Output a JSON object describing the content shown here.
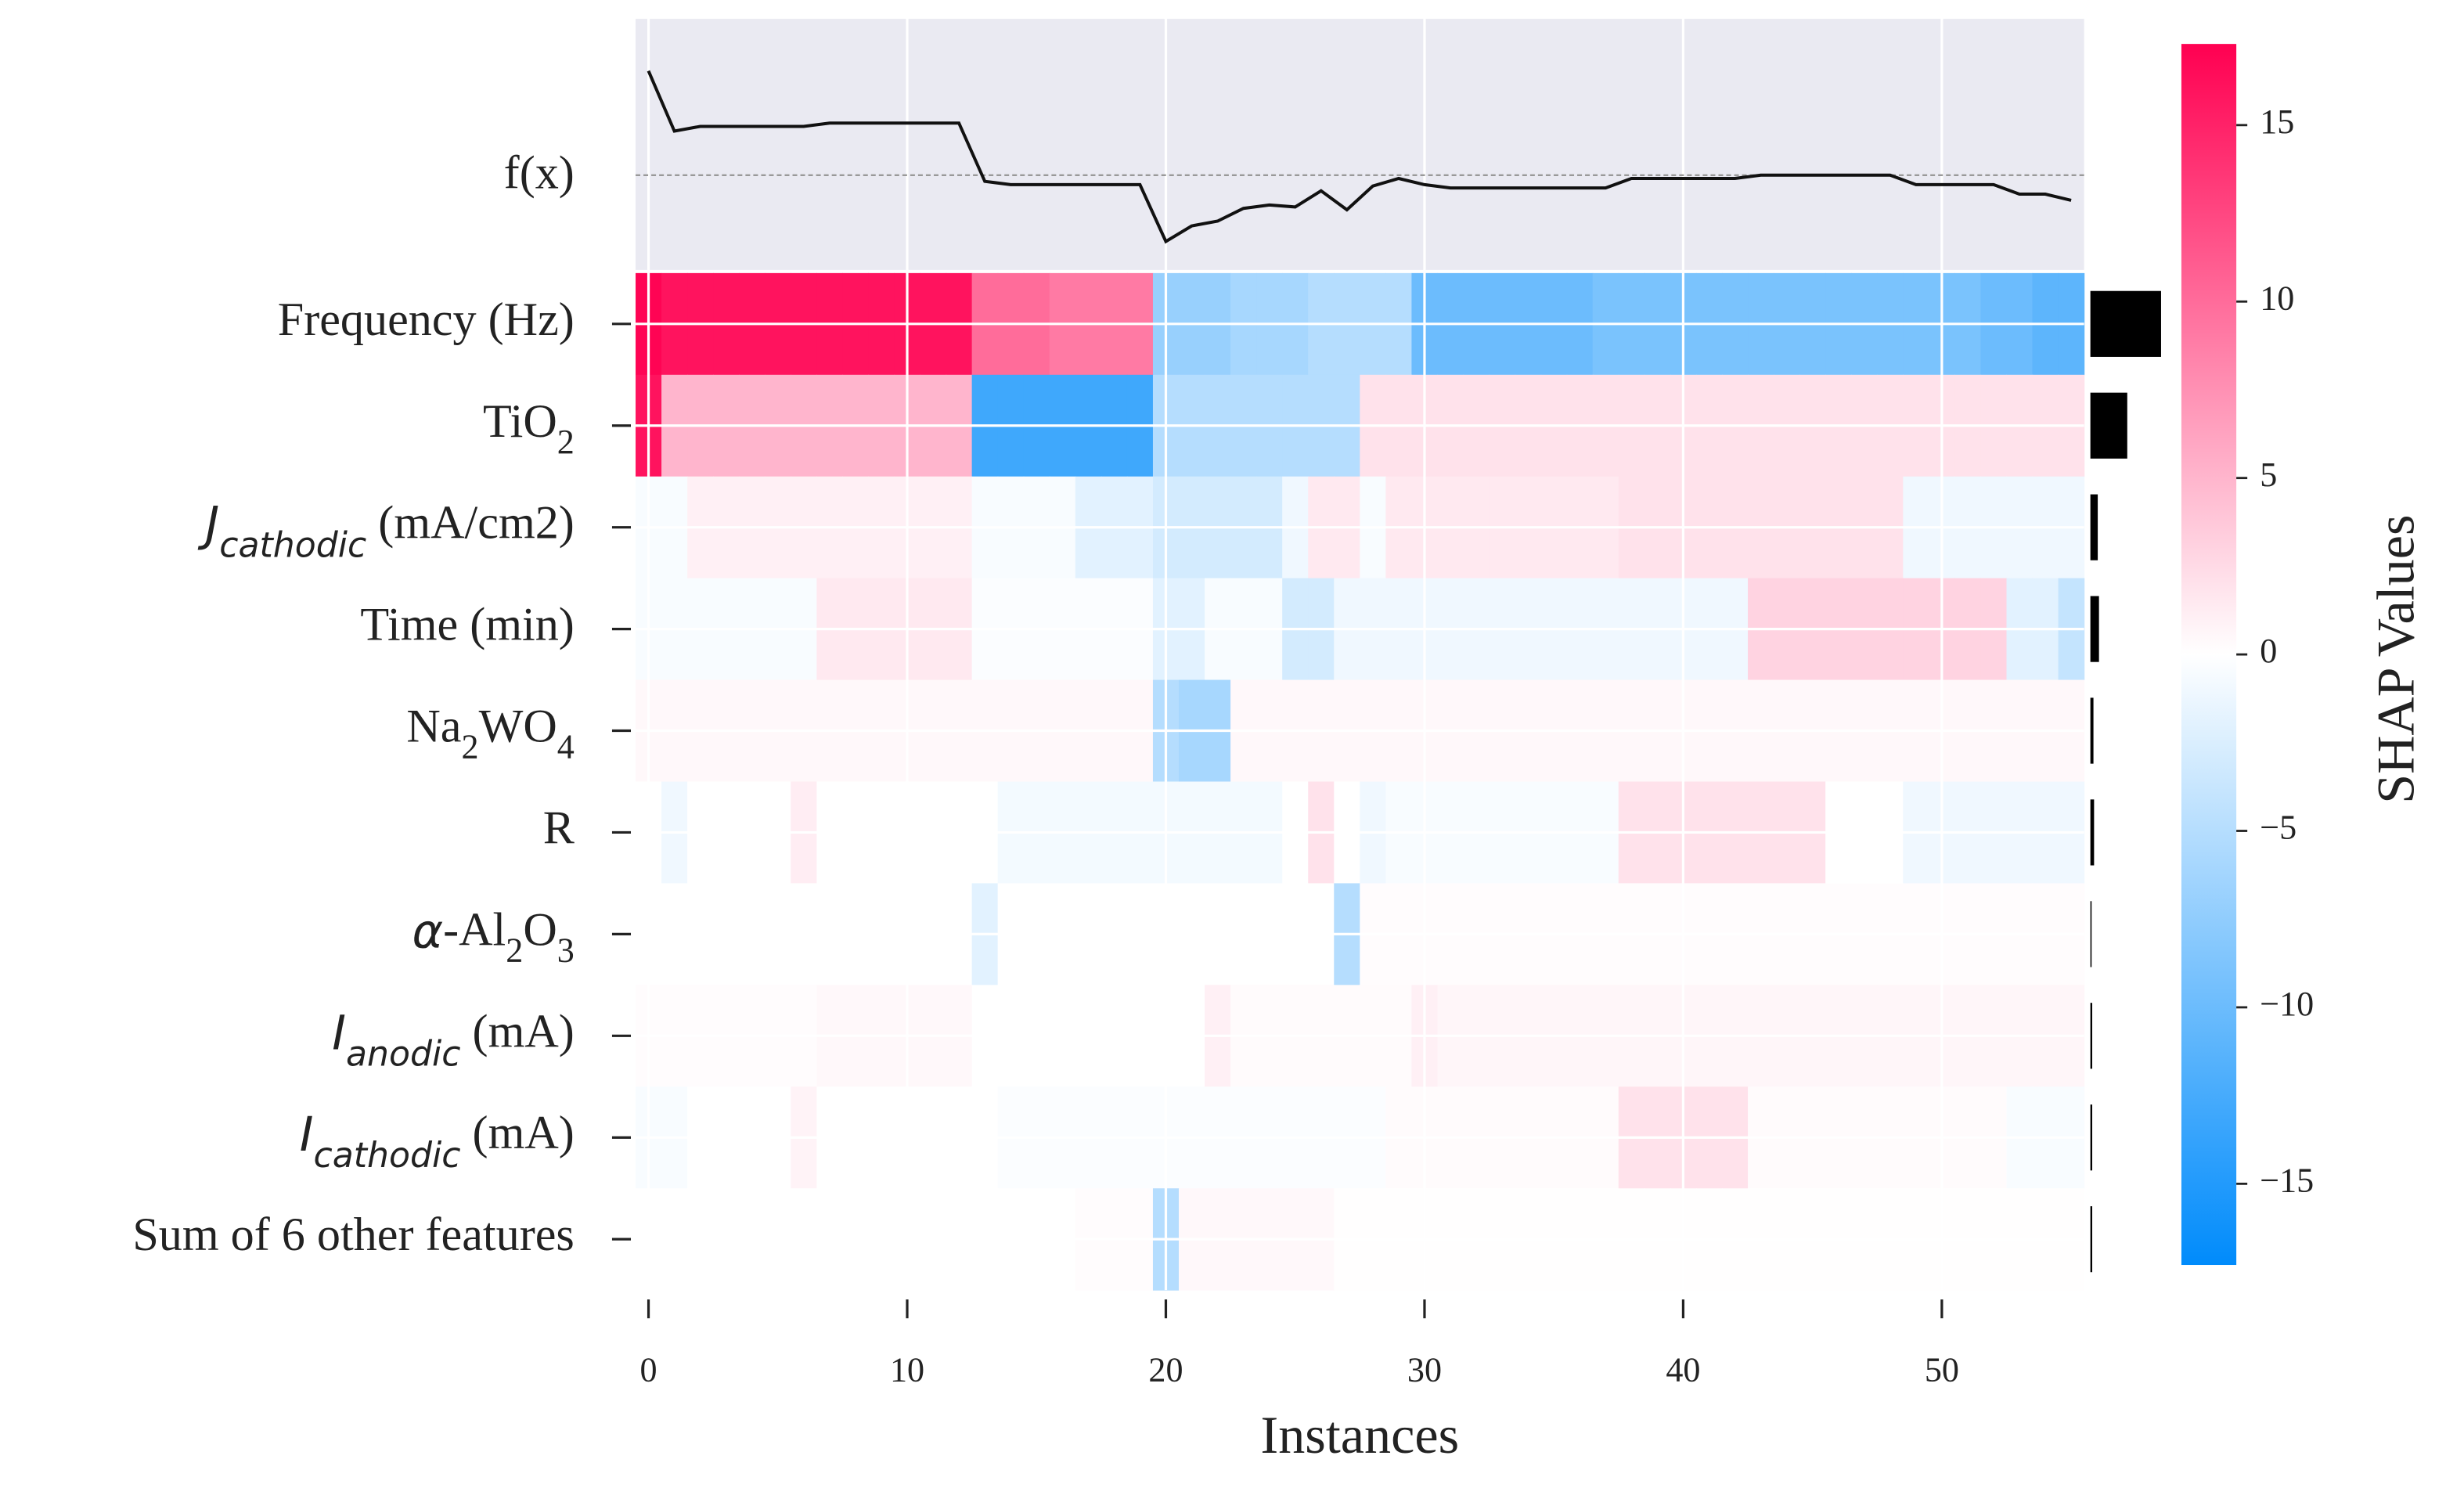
{
  "chart_data": {
    "type": "heatmap",
    "xlabel": "Instances",
    "xlim": [
      -0.5,
      55.5
    ],
    "xticks": [
      0,
      10,
      20,
      30,
      40,
      50
    ],
    "clim": [
      -17.3,
      17.3
    ],
    "colormap": [
      "#008bfb",
      "#ffffff",
      "#ff0051"
    ],
    "colorbar_label": "SHAP Values",
    "colorbar_ticks": [
      {
        "value": -15,
        "label": "−15"
      },
      {
        "value": -10,
        "label": "−10"
      },
      {
        "value": -5,
        "label": "−5"
      },
      0,
      5,
      10,
      15
    ],
    "bar_color": "#000000",
    "bar_lim": [
      0,
      12
    ],
    "fx": {
      "label": "f(x)",
      "base_value": 0,
      "ylim": [
        -20,
        33
      ],
      "values": [
        22,
        9.3,
        10.3,
        10.3,
        10.3,
        10.3,
        10.3,
        11,
        11,
        11,
        11,
        11,
        11,
        -1.3,
        -2,
        -2,
        -2,
        -2,
        -2,
        -2,
        -14,
        -10.7,
        -9.7,
        -7,
        -6.3,
        -6.7,
        -3.3,
        -7.3,
        -2.3,
        -0.7,
        -2,
        -2.7,
        -2.7,
        -2.7,
        -2.7,
        -2.7,
        -2.7,
        -2.7,
        -0.7,
        -0.7,
        -0.7,
        -0.7,
        -0.7,
        0,
        0,
        0,
        0,
        0,
        0,
        -2,
        -2,
        -2,
        -2,
        -4,
        -4,
        -5.3
      ]
    },
    "features": [
      {
        "label": [
          {
            "text": "Frequency (Hz)",
            "style": "normal"
          }
        ],
        "importance": 11.5,
        "values": [
          17,
          16,
          16,
          16,
          16,
          16,
          16,
          16,
          16,
          16,
          16,
          16,
          16,
          10,
          10,
          10,
          9,
          9,
          9,
          9,
          -7,
          -7,
          -7,
          -6,
          -6,
          -6,
          -5,
          -5,
          -5,
          -5,
          -10,
          -10,
          -10,
          -10,
          -10,
          -10,
          -10,
          -9,
          -9,
          -9,
          -9,
          -9,
          -9,
          -9,
          -9,
          -9,
          -9,
          -9,
          -9,
          -9,
          -9,
          -9,
          -10,
          -10,
          -11,
          -11
        ]
      },
      {
        "label": [
          {
            "text": "TiO",
            "style": "normal"
          },
          {
            "text": "2",
            "style": "sub"
          }
        ],
        "importance": 6,
        "values": [
          16,
          5,
          5,
          5,
          5,
          5,
          5,
          5,
          5,
          5,
          5,
          5,
          5,
          -13,
          -13,
          -13,
          -13,
          -13,
          -13,
          -13,
          -5,
          -5,
          -5,
          -5,
          -5,
          -5,
          -5,
          -5,
          2,
          2,
          2,
          2,
          2,
          2,
          2,
          2,
          2,
          2,
          2,
          2,
          2,
          2,
          2,
          2,
          2,
          2,
          2,
          2,
          2,
          2,
          2,
          2,
          2,
          2,
          2,
          2
        ]
      },
      {
        "label": [
          {
            "text": "J",
            "style": "italic"
          },
          {
            "text": "cathodic",
            "style": "italic-sub"
          },
          {
            "text": " (mA/cm2)",
            "style": "normal"
          }
        ],
        "importance": 1.2,
        "values": [
          -0.5,
          -0.5,
          1,
          1,
          1,
          1,
          1,
          1,
          1,
          1,
          1,
          1,
          1,
          -0.5,
          -0.5,
          -0.5,
          -0.5,
          -2,
          -2,
          -2,
          -3,
          -3,
          -3,
          -3,
          -3,
          -1,
          1.5,
          1.5,
          -0.5,
          1.5,
          1.5,
          1.5,
          1.5,
          1.5,
          1.5,
          1.5,
          1.5,
          1.5,
          2,
          2,
          2,
          2,
          2,
          2,
          2,
          2,
          2,
          2,
          2,
          -1,
          -1,
          -1,
          -1,
          -1,
          -1,
          -1
        ]
      },
      {
        "label": [
          {
            "text": "Time (min)",
            "style": "normal"
          }
        ],
        "importance": 1.4,
        "values": [
          -0.5,
          -0.5,
          -0.5,
          -0.5,
          -0.5,
          -0.5,
          -0.5,
          1.5,
          1.5,
          1.5,
          1.5,
          1.5,
          1.5,
          -0.3,
          -0.3,
          -0.3,
          -0.3,
          -0.3,
          -0.3,
          -0.3,
          -2,
          -2,
          -0.5,
          -0.5,
          -0.5,
          -3,
          -3,
          -1,
          -1,
          -1,
          -1,
          -1,
          -1,
          -1,
          -1,
          -1,
          -1,
          -1,
          -1,
          -1,
          -1,
          -1,
          -1,
          3,
          3,
          3,
          3,
          3,
          3,
          3,
          3,
          3,
          3,
          -2,
          -2,
          -4
        ]
      },
      {
        "label": [
          {
            "text": "Na",
            "style": "normal"
          },
          {
            "text": "2",
            "style": "sub"
          },
          {
            "text": "WO",
            "style": "normal"
          },
          {
            "text": "4",
            "style": "sub"
          }
        ],
        "importance": 0.5,
        "values": [
          0.5,
          0.5,
          0.5,
          0.5,
          0.5,
          0.5,
          0.5,
          0.5,
          0.5,
          0.5,
          0.5,
          0.5,
          0.5,
          0.5,
          0.5,
          0.5,
          0.5,
          0.5,
          0.5,
          0.5,
          -5,
          -6,
          -6,
          0.5,
          0.5,
          0.5,
          0.5,
          0.5,
          0.5,
          0.5,
          0.5,
          0.5,
          0.5,
          0.5,
          0.5,
          0.5,
          0.5,
          0.5,
          0.5,
          0.5,
          0.5,
          0.5,
          0.5,
          0.5,
          0.5,
          0.5,
          0.5,
          0.5,
          0.5,
          0.5,
          0.5,
          0.5,
          0.5,
          0.5,
          0.5,
          0.5
        ]
      },
      {
        "label": [
          {
            "text": "R",
            "style": "normal"
          }
        ],
        "importance": 0.6,
        "values": [
          0,
          -1,
          0,
          0,
          0,
          0,
          1.2,
          0,
          0,
          0,
          0,
          0,
          0,
          0,
          -0.8,
          -0.8,
          -0.8,
          -0.8,
          -0.8,
          -0.8,
          -0.8,
          -0.8,
          -0.8,
          -0.8,
          -0.8,
          0,
          2,
          0,
          -1,
          -0.5,
          -0.5,
          -0.5,
          -0.5,
          -0.5,
          -0.5,
          -0.5,
          -0.5,
          -0.5,
          2,
          2,
          2,
          2,
          2,
          2,
          2,
          2,
          0,
          0,
          0,
          -1,
          -1,
          -1,
          -1,
          -1,
          -1,
          -1
        ]
      },
      {
        "label": [
          {
            "text": "α",
            "style": "italic"
          },
          {
            "text": "-Al",
            "style": "normal"
          },
          {
            "text": "2",
            "style": "sub"
          },
          {
            "text": "O",
            "style": "normal"
          },
          {
            "text": "3",
            "style": "sub"
          }
        ],
        "importance": 0.2,
        "values": [
          0,
          0,
          0,
          0,
          0,
          0,
          0,
          0,
          0,
          0,
          0,
          0,
          0,
          -2,
          0,
          0,
          0,
          0,
          0,
          0,
          0,
          0,
          0,
          0,
          0,
          0,
          0,
          -5,
          0.2,
          0.2,
          0.2,
          0.2,
          0.2,
          0.2,
          0.2,
          0.2,
          0.2,
          0.2,
          0.2,
          0.2,
          0.2,
          0.2,
          0.2,
          0.2,
          0.2,
          0.2,
          0.2,
          0.2,
          0.2,
          0.2,
          0.2,
          0.2,
          0.2,
          0.2,
          0.2,
          0.2
        ]
      },
      {
        "label": [
          {
            "text": "I",
            "style": "italic"
          },
          {
            "text": "anodic",
            "style": "italic-sub"
          },
          {
            "text": " (mA)",
            "style": "normal"
          }
        ],
        "importance": 0.3,
        "values": [
          0.2,
          0.2,
          0.2,
          0.2,
          0.2,
          0.2,
          0.2,
          0.5,
          0.5,
          0.5,
          0.5,
          0.5,
          0.5,
          0,
          0,
          0,
          0,
          0,
          0,
          0,
          0,
          0,
          1,
          0.3,
          0.3,
          0.3,
          0.3,
          0.3,
          0.3,
          0.3,
          1,
          0.6,
          0.6,
          0.6,
          0.6,
          0.6,
          0.6,
          0.6,
          0.6,
          0.6,
          0.6,
          0.6,
          0.6,
          0.6,
          0.6,
          0.6,
          0.6,
          0.6,
          0.6,
          0.6,
          0.6,
          0.6,
          0.6,
          0.6,
          0.6,
          0.6
        ]
      },
      {
        "label": [
          {
            "text": "I",
            "style": "italic"
          },
          {
            "text": "cathodic",
            "style": "italic-sub"
          },
          {
            "text": " (mA)",
            "style": "normal"
          }
        ],
        "importance": 0.3,
        "values": [
          -0.5,
          -0.5,
          0,
          0,
          0,
          0,
          0.8,
          0,
          0,
          0,
          0,
          0,
          0,
          0,
          -0.3,
          -0.3,
          -0.3,
          -0.3,
          -0.3,
          -0.3,
          -0.3,
          -0.3,
          -0.3,
          -0.3,
          -0.3,
          -0.3,
          -0.3,
          -0.3,
          -0.3,
          0.3,
          0.3,
          0.3,
          0.3,
          0.3,
          0.3,
          0.3,
          0.3,
          0.3,
          2,
          2,
          2,
          2,
          2,
          0.3,
          0.3,
          0.3,
          0.3,
          0.3,
          0.3,
          0.3,
          0.3,
          0.3,
          0.3,
          -0.5,
          -0.5,
          -0.5
        ]
      },
      {
        "label": [
          {
            "text": "Sum of 6 other features",
            "style": "normal"
          }
        ],
        "importance": 0.3,
        "values": [
          0,
          0,
          0,
          0,
          0,
          0,
          0,
          0,
          0,
          0,
          0,
          0,
          0,
          0,
          0,
          0,
          0,
          0.2,
          0.2,
          0.2,
          -5,
          0.5,
          0.5,
          0.5,
          0.5,
          0.5,
          0.5,
          0.1,
          0.1,
          0.1,
          0.1,
          0.1,
          0.1,
          0.1,
          0.1,
          0.1,
          0.1,
          0.1,
          0.1,
          0.1,
          0.1,
          0.1,
          0.1,
          0.1,
          0.1,
          0.1,
          0.1,
          0.1,
          0.1,
          0.1,
          0.1,
          0.1,
          0.1,
          0.1,
          0.1,
          0.1
        ]
      }
    ]
  }
}
